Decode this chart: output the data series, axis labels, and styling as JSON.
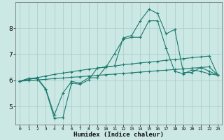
{
  "xlabel": "Humidex (Indice chaleur)",
  "background_color": "#cce8e5",
  "grid_color": "#aacfcc",
  "line_color": "#1a7a6e",
  "x_ticks": [
    0,
    1,
    2,
    3,
    4,
    5,
    6,
    7,
    8,
    9,
    10,
    11,
    12,
    13,
    14,
    15,
    16,
    17,
    18,
    19,
    20,
    21,
    22,
    23
  ],
  "y_ticks": [
    5,
    6,
    7,
    8
  ],
  "ylim": [
    4.3,
    9.0
  ],
  "xlim": [
    -0.5,
    23.5
  ],
  "series": [
    [
      5.97,
      6.07,
      6.07,
      5.65,
      4.55,
      4.58,
      5.9,
      5.85,
      6.02,
      6.48,
      6.5,
      7.02,
      7.57,
      7.65,
      7.65,
      8.28,
      8.28,
      7.22,
      6.35,
      6.25,
      6.4,
      6.35,
      6.25,
      6.2
    ],
    [
      5.97,
      6.07,
      6.1,
      5.68,
      4.68,
      5.52,
      5.96,
      5.9,
      6.1,
      6.1,
      6.52,
      6.55,
      7.62,
      7.72,
      8.28,
      8.72,
      8.56,
      7.78,
      7.95,
      6.3,
      6.3,
      6.5,
      6.35,
      6.2
    ],
    [
      5.97,
      6.03,
      6.1,
      6.17,
      6.23,
      6.28,
      6.33,
      6.38,
      6.43,
      6.47,
      6.52,
      6.55,
      6.6,
      6.63,
      6.67,
      6.7,
      6.73,
      6.77,
      6.8,
      6.83,
      6.87,
      6.9,
      6.93,
      6.2
    ],
    [
      5.97,
      5.99,
      6.02,
      6.04,
      6.07,
      6.09,
      6.12,
      6.14,
      6.17,
      6.19,
      6.22,
      6.24,
      6.27,
      6.29,
      6.32,
      6.34,
      6.37,
      6.39,
      6.42,
      6.44,
      6.47,
      6.49,
      6.52,
      6.2
    ]
  ]
}
